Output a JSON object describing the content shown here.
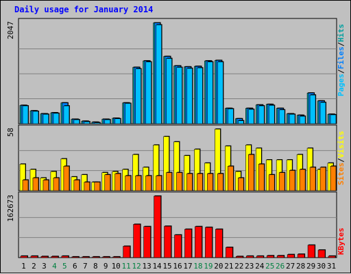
{
  "title": "Daily usage for January 2014",
  "colors": {
    "pages": "#00c0ff",
    "files": "#0080ff",
    "hits": "#00a0a0",
    "visits": "#ffff00",
    "sites": "#ff8000",
    "kbytes": "#ff0000",
    "background": "#c0c0c0",
    "grid": "#808080",
    "weekend_label": "#008040"
  },
  "chart_data": [
    {
      "type": "bar",
      "panel": "hits-files-pages",
      "ylim": [
        0,
        2047
      ],
      "y_tick_label": "2047",
      "grid": true,
      "series_labels": {
        "pages": "Pages",
        "files": "Files",
        "hits": "Hits",
        "sep1": "/",
        "sep2": "/"
      },
      "categories": [
        "1",
        "2",
        "3",
        "4",
        "5",
        "6",
        "7",
        "8",
        "9",
        "10",
        "11",
        "12",
        "13",
        "14",
        "15",
        "16",
        "17",
        "18",
        "19",
        "20",
        "21",
        "22",
        "23",
        "24",
        "25",
        "26",
        "27",
        "28",
        "29",
        "30",
        "31"
      ],
      "weekend_days": [
        "4",
        "5",
        "11",
        "12",
        "18",
        "19",
        "25",
        "26"
      ],
      "series": [
        {
          "name": "Hits",
          "values": [
            370,
            260,
            200,
            220,
            420,
            90,
            50,
            30,
            90,
            110,
            420,
            1140,
            1270,
            2040,
            1360,
            1170,
            1150,
            1160,
            1270,
            1280,
            310,
            100,
            310,
            380,
            390,
            310,
            200,
            170,
            620,
            460,
            190
          ]
        },
        {
          "name": "Files",
          "values": [
            370,
            260,
            200,
            220,
            420,
            90,
            50,
            30,
            90,
            110,
            420,
            1140,
            1270,
            2040,
            1360,
            1170,
            1150,
            1160,
            1270,
            1280,
            310,
            100,
            310,
            380,
            390,
            310,
            200,
            170,
            620,
            460,
            190
          ]
        },
        {
          "name": "Pages",
          "values": [
            360,
            250,
            190,
            210,
            360,
            80,
            40,
            20,
            80,
            100,
            410,
            1110,
            1250,
            2000,
            1320,
            1140,
            1120,
            1130,
            1250,
            1250,
            300,
            60,
            290,
            360,
            370,
            280,
            190,
            150,
            580,
            430,
            180
          ]
        }
      ]
    },
    {
      "type": "bar",
      "panel": "visits-sites",
      "ylim": [
        0,
        58
      ],
      "y_tick_label": "58",
      "grid": true,
      "series_labels": {
        "visits": "Visits",
        "sites": "Sites",
        "sep": "/"
      },
      "categories": [
        "1",
        "2",
        "3",
        "4",
        "5",
        "6",
        "7",
        "8",
        "9",
        "10",
        "11",
        "12",
        "13",
        "14",
        "15",
        "16",
        "17",
        "18",
        "19",
        "20",
        "21",
        "22",
        "23",
        "24",
        "25",
        "26",
        "27",
        "28",
        "29",
        "30",
        "31"
      ],
      "series": [
        {
          "name": "Visits",
          "values": [
            25,
            20,
            12,
            18,
            30,
            13,
            15,
            8,
            17,
            18,
            20,
            34,
            22,
            43,
            51,
            46,
            33,
            39,
            26,
            58,
            42,
            18,
            43,
            40,
            29,
            29,
            29,
            34,
            40,
            20,
            26
          ]
        },
        {
          "name": "Sites",
          "values": [
            10,
            12,
            10,
            12,
            23,
            10,
            8,
            8,
            15,
            16,
            14,
            14,
            14,
            14,
            17,
            17,
            16,
            16,
            16,
            16,
            23,
            12,
            34,
            25,
            15,
            17,
            19,
            20,
            22,
            22,
            23
          ]
        }
      ]
    },
    {
      "type": "bar",
      "panel": "kbytes",
      "ylim": [
        0,
        162673
      ],
      "y_tick_label": "162673",
      "grid": true,
      "series_labels": {
        "kbytes": "KBytes"
      },
      "categories": [
        "1",
        "2",
        "3",
        "4",
        "5",
        "6",
        "7",
        "8",
        "9",
        "10",
        "11",
        "12",
        "13",
        "14",
        "15",
        "16",
        "17",
        "18",
        "19",
        "20",
        "21",
        "22",
        "23",
        "24",
        "25",
        "26",
        "27",
        "28",
        "29",
        "30",
        "31"
      ],
      "series": [
        {
          "name": "KBytes",
          "values": [
            4000,
            4000,
            3000,
            3000,
            4000,
            2000,
            2000,
            2000,
            2000,
            2000,
            30000,
            88000,
            82000,
            162673,
            83000,
            60000,
            75000,
            82000,
            80000,
            75000,
            27000,
            3000,
            4000,
            4000,
            5000,
            5000,
            8000,
            9000,
            33000,
            20000,
            4000
          ]
        }
      ]
    }
  ]
}
